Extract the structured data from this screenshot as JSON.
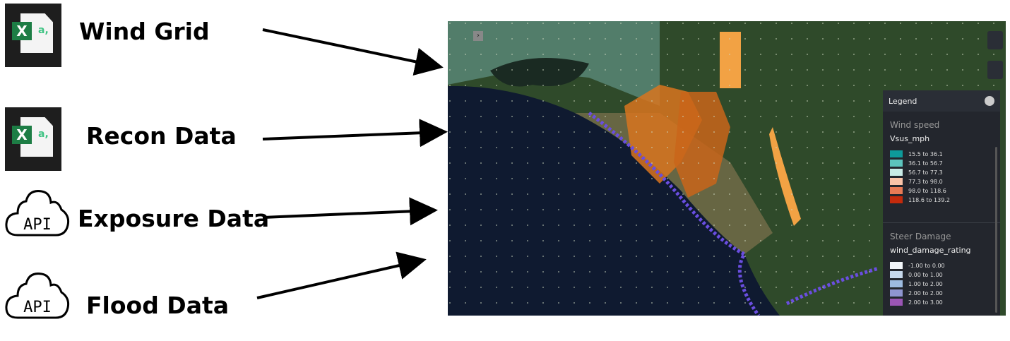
{
  "sources": [
    {
      "label": "Wind Grid",
      "icon": "excel-icon"
    },
    {
      "label": "Recon Data",
      "icon": "excel-icon"
    },
    {
      "label": "Exposure Data",
      "icon": "api-cloud-icon",
      "icon_text": "API"
    },
    {
      "label": "Flood Data",
      "icon": "api-cloud-icon",
      "icon_text": "API"
    }
  ],
  "excel_icon_text": "X",
  "map": {
    "legend": {
      "title": "Legend",
      "sections": [
        {
          "title": "Wind speed",
          "field": "Vsus_mph",
          "items": [
            {
              "label": "15.5 to 36.1",
              "color": "#0e9a9a"
            },
            {
              "label": "36.1 to 56.7",
              "color": "#5cc4bd"
            },
            {
              "label": "56.7 to 77.3",
              "color": "#c8ebe6"
            },
            {
              "label": "77.3 to 98.0",
              "color": "#f9c3a8"
            },
            {
              "label": "98.0 to 118.6",
              "color": "#e87a55"
            },
            {
              "label": "118.6 to 139.2",
              "color": "#c42a0c"
            }
          ]
        },
        {
          "title": "Steer Damage",
          "field": "wind_damage_rating",
          "items": [
            {
              "label": "-1.00 to 0.00",
              "color": "#f2f6fa"
            },
            {
              "label": "0.00 to 1.00",
              "color": "#c6d8ec"
            },
            {
              "label": "1.00 to 2.00",
              "color": "#9dbbe0"
            },
            {
              "label": "2.00 to 2.00",
              "color": "#8f95d0"
            },
            {
              "label": "2.00 to 3.00",
              "color": "#9b55b5"
            }
          ]
        }
      ]
    }
  }
}
